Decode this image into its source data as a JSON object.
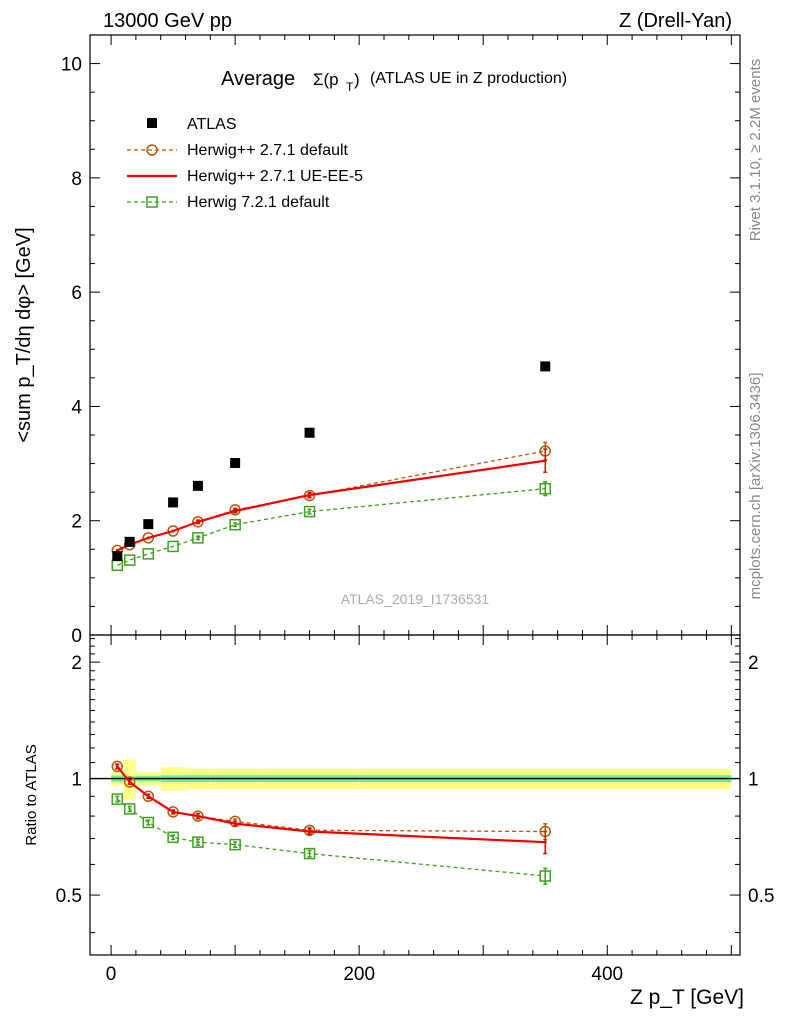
{
  "header": {
    "left": "13000 GeV pp",
    "right": "Z (Drell-Yan)"
  },
  "side": {
    "rivet": "Rivet 3.1.10, ≥ 2.2M events",
    "mcplots": "mcplots.cern.ch [arXiv:1306.3436]"
  },
  "chart_data": {
    "type": "scatter",
    "title_prefix": "Average",
    "title_formula": "Σ(p",
    "title_formula_sub": "T",
    "title_formula_close": ")",
    "title_suffix": "(ATLAS UE in Z production)",
    "analysis_id": "ATLAS_2019_I1736531",
    "ylabel": "<sum p_T/dη dφ> [GeV]",
    "ratio_ylabel": "Ratio to ATLAS",
    "xlabel": "Z p_T [GeV]",
    "xlim": [
      -17,
      507
    ],
    "ylim": [
      0,
      10.5
    ],
    "ratio_ylim": [
      0.35,
      2.35
    ],
    "ratio_log_scale": true,
    "x_ticks": [
      0,
      200,
      400
    ],
    "y_ticks": [
      0,
      2,
      4,
      6,
      8,
      10
    ],
    "ratio_ticks": [
      0.5,
      1,
      2
    ],
    "x": [
      5,
      15,
      30,
      50,
      70,
      100,
      160,
      350
    ],
    "x_bins": [
      [
        0,
        10
      ],
      [
        10,
        20
      ],
      [
        20,
        40
      ],
      [
        40,
        60
      ],
      [
        60,
        80
      ],
      [
        80,
        120
      ],
      [
        120,
        200
      ],
      [
        200,
        500
      ]
    ],
    "legend_position": "top-left",
    "series": [
      {
        "name": "ATLAS",
        "role": "data",
        "color": "#000000",
        "marker": "filled-square",
        "values": [
          1.38,
          1.63,
          1.94,
          2.32,
          2.61,
          3.01,
          3.54,
          4.7
        ]
      },
      {
        "name": "Herwig++ 2.7.1 default",
        "color": "#b05a10",
        "marker": "open-circle",
        "linestyle": "dashed",
        "values": [
          1.48,
          1.58,
          1.7,
          1.82,
          1.98,
          2.19,
          2.44,
          3.22
        ],
        "errors": [
          0.02,
          0.02,
          0.02,
          0.02,
          0.03,
          0.03,
          0.04,
          0.15
        ],
        "ratio": [
          1.075,
          0.98,
          0.9,
          0.82,
          0.8,
          0.775,
          0.735,
          0.73
        ]
      },
      {
        "name": "Herwig++ 2.7.1 UE-EE-5",
        "color": "#ee0000",
        "marker": "none",
        "linestyle": "solid",
        "values": [
          1.48,
          1.58,
          1.7,
          1.82,
          1.98,
          2.17,
          2.45,
          3.05
        ],
        "errors": [
          0.02,
          0.02,
          0.02,
          0.02,
          0.03,
          0.03,
          0.04,
          0.2
        ],
        "ratio": [
          1.075,
          0.98,
          0.9,
          0.82,
          0.8,
          0.765,
          0.73,
          0.685
        ]
      },
      {
        "name": "Herwig 7.2.1 default",
        "color": "#3f9f1f",
        "marker": "open-square",
        "linestyle": "dashed",
        "values": [
          1.22,
          1.31,
          1.42,
          1.55,
          1.7,
          1.93,
          2.16,
          2.56
        ],
        "errors": [
          0.02,
          0.02,
          0.02,
          0.02,
          0.03,
          0.03,
          0.04,
          0.12
        ],
        "ratio": [
          0.885,
          0.835,
          0.77,
          0.705,
          0.685,
          0.675,
          0.64,
          0.56
        ]
      }
    ],
    "ratio_bands": {
      "stat_color": "#66ee99",
      "total_color": "#ffff88",
      "stat": [
        0.018,
        0.012,
        0.015,
        0.02,
        0.02,
        0.02,
        0.02,
        0.02
      ],
      "total": [
        0.04,
        0.12,
        0.04,
        0.07,
        0.06,
        0.06,
        0.06,
        0.06
      ]
    }
  }
}
